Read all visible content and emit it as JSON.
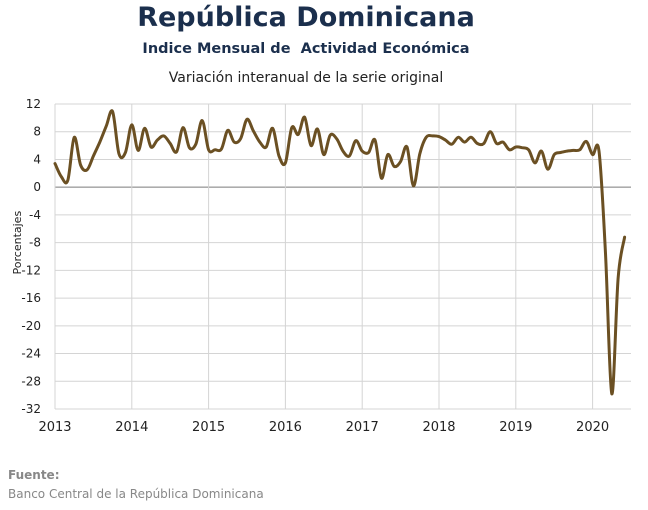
{
  "header": {
    "title": "República Dominicana",
    "subtitle": "Indice Mensual de  Actividad Económica",
    "subtitle2": "Variación interanual de la serie original"
  },
  "footer": {
    "source_label": "Fuente:",
    "source_text": "Banco Central de la República Dominicana"
  },
  "chart_data": {
    "type": "line",
    "title": "República Dominicana",
    "subtitle": "Variación interanual de la serie original",
    "xlabel": "",
    "ylabel": "Porcentajes",
    "ylim": [
      -32,
      12
    ],
    "yticks": [
      12,
      8,
      4,
      0,
      -4,
      -8,
      -12,
      -16,
      -20,
      -24,
      -28,
      -32
    ],
    "ytick_labels": [
      "12",
      "8",
      "4",
      "0",
      "-4",
      "-8",
      "-12",
      "-16",
      "-20",
      "-24",
      "-28",
      "-32"
    ],
    "xlim": [
      2013,
      2020.5
    ],
    "xtick_labels": [
      "2013",
      "2014",
      "2015",
      "2016",
      "2017",
      "2018",
      "2019",
      "2020"
    ],
    "grid": true,
    "legend": "none",
    "line_color": "#6b5023",
    "series": [
      {
        "x": [
          2013.0,
          2013.083,
          2013.167,
          2013.25,
          2013.333,
          2013.417,
          2013.5,
          2013.583,
          2013.667,
          2013.75,
          2013.833,
          2013.917,
          2014.0,
          2014.083,
          2014.167,
          2014.25,
          2014.333,
          2014.417,
          2014.5,
          2014.583,
          2014.667,
          2014.75,
          2014.833,
          2014.917,
          2015.0,
          2015.083,
          2015.167,
          2015.25,
          2015.333,
          2015.417,
          2015.5,
          2015.583,
          2015.667,
          2015.75,
          2015.833,
          2015.917,
          2016.0,
          2016.083,
          2016.167,
          2016.25,
          2016.333,
          2016.417,
          2016.5,
          2016.583,
          2016.667,
          2016.75,
          2016.833,
          2016.917,
          2017.0,
          2017.083,
          2017.167,
          2017.25,
          2017.333,
          2017.417,
          2017.5,
          2017.583,
          2017.667,
          2017.75,
          2017.833,
          2017.917,
          2018.0,
          2018.083,
          2018.167,
          2018.25,
          2018.333,
          2018.417,
          2018.5,
          2018.583,
          2018.667,
          2018.75,
          2018.833,
          2018.917,
          2019.0,
          2019.083,
          2019.167,
          2019.25,
          2019.333,
          2019.417,
          2019.5,
          2019.583,
          2019.667,
          2019.75,
          2019.833,
          2019.917,
          2020.0,
          2020.083,
          2020.167,
          2020.25,
          2020.333,
          2020.417
        ],
        "values": [
          3.4,
          1.5,
          1.0,
          7.2,
          3.2,
          2.5,
          4.5,
          6.5,
          8.8,
          10.9,
          4.8,
          5.0,
          9.0,
          5.3,
          8.5,
          5.8,
          6.8,
          7.4,
          6.3,
          5.1,
          8.6,
          5.7,
          6.2,
          9.6,
          5.4,
          5.4,
          5.5,
          8.2,
          6.5,
          7.0,
          9.8,
          8.1,
          6.5,
          5.8,
          8.5,
          4.5,
          3.5,
          8.6,
          7.6,
          10.1,
          6.0,
          8.4,
          4.7,
          7.5,
          7.0,
          5.2,
          4.5,
          6.7,
          5.2,
          5.0,
          6.8,
          1.3,
          4.7,
          3.0,
          3.7,
          5.8,
          0.2,
          4.8,
          7.2,
          7.4,
          7.3,
          6.8,
          6.2,
          7.2,
          6.5,
          7.2,
          6.3,
          6.3,
          8.0,
          6.3,
          6.5,
          5.4,
          5.8,
          5.7,
          5.4,
          3.5,
          5.2,
          2.6,
          4.7,
          5.0,
          5.2,
          5.3,
          5.4,
          6.6,
          4.7,
          5.2,
          -9.3,
          -29.8,
          -13.0,
          -7.2
        ]
      }
    ]
  }
}
